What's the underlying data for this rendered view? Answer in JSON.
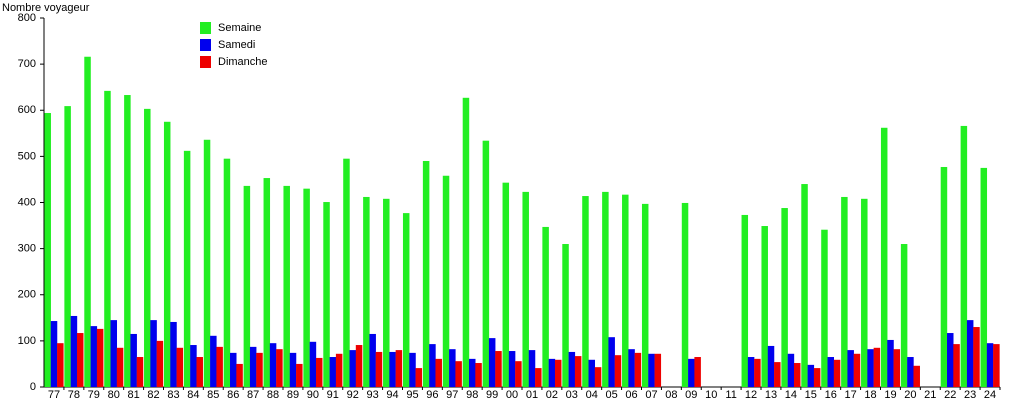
{
  "chart_data": {
    "type": "bar",
    "y_label": "Nombre voyageur",
    "categories": [
      "77",
      "78",
      "79",
      "80",
      "81",
      "82",
      "83",
      "84",
      "85",
      "86",
      "87",
      "88",
      "89",
      "90",
      "91",
      "92",
      "93",
      "94",
      "95",
      "96",
      "97",
      "98",
      "99",
      "00",
      "01",
      "02",
      "03",
      "04",
      "05",
      "06",
      "07",
      "08",
      "09",
      "10",
      "11",
      "12",
      "13",
      "14",
      "15",
      "16",
      "17",
      "18",
      "19",
      "20",
      "21",
      "22",
      "23",
      "24"
    ],
    "series": [
      {
        "name": "Semaine",
        "color": "#22ee22",
        "values": [
          594,
          609,
          716,
          642,
          633,
          603,
          575,
          512,
          536,
          495,
          436,
          453,
          436,
          430,
          401,
          495,
          412,
          408,
          377,
          490,
          458,
          627,
          534,
          443,
          423,
          347,
          310,
          414,
          423,
          417,
          397,
          null,
          399,
          null,
          null,
          373,
          349,
          388,
          440,
          341,
          412,
          408,
          562,
          310,
          null,
          477,
          566,
          475
        ]
      },
      {
        "name": "Samedi",
        "color": "#0000ee",
        "values": [
          143,
          154,
          132,
          145,
          115,
          145,
          141,
          91,
          111,
          74,
          87,
          95,
          74,
          98,
          65,
          80,
          115,
          76,
          74,
          93,
          82,
          61,
          106,
          78,
          80,
          61,
          76,
          59,
          108,
          82,
          72,
          null,
          61,
          null,
          null,
          65,
          89,
          72,
          48,
          65,
          80,
          82,
          102,
          65,
          null,
          117,
          145,
          95
        ]
      },
      {
        "name": "Dimanche",
        "color": "#ee0000",
        "values": [
          95,
          117,
          126,
          85,
          65,
          100,
          85,
          65,
          87,
          50,
          74,
          82,
          50,
          63,
          72,
          91,
          76,
          80,
          41,
          61,
          56,
          52,
          78,
          56,
          41,
          59,
          67,
          43,
          69,
          74,
          72,
          null,
          65,
          null,
          null,
          61,
          54,
          52,
          41,
          59,
          72,
          85,
          82,
          46,
          null,
          93,
          130,
          93
        ]
      }
    ],
    "ylim": [
      0,
      800
    ],
    "yticks": [
      0,
      100,
      200,
      300,
      400,
      500,
      600,
      700,
      800
    ]
  }
}
